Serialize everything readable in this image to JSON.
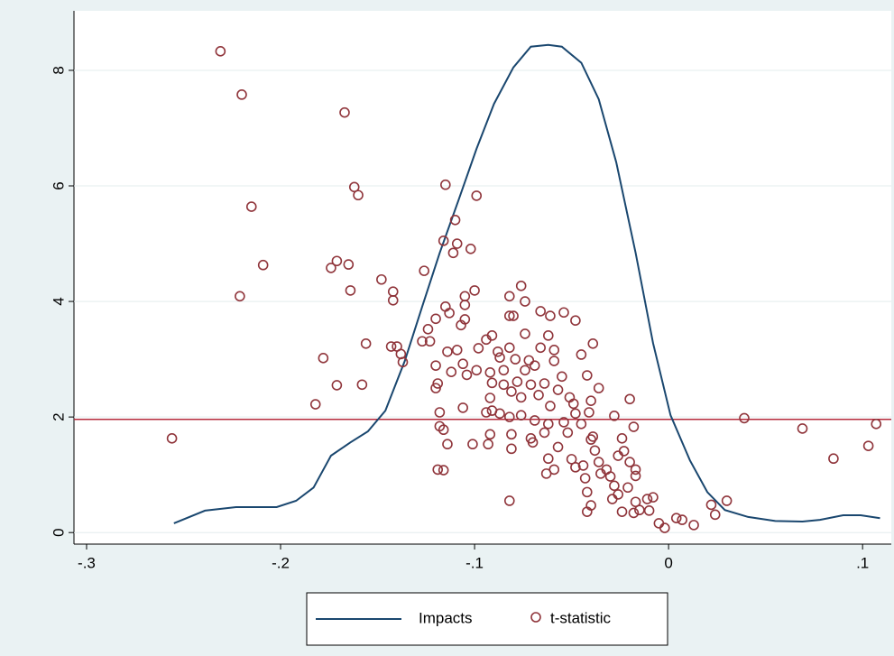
{
  "chart_data": {
    "type": "combo",
    "xlim": [
      -0.3065,
      0.1148
    ],
    "ylim": [
      -0.2,
      9.03
    ],
    "xticks": [
      {
        "value": -0.3,
        "label": "-.3"
      },
      {
        "value": -0.2,
        "label": "-.2"
      },
      {
        "value": -0.1,
        "label": "-.1"
      },
      0,
      {
        "value": 0.1,
        "label": ".1"
      }
    ],
    "yticks": [
      0,
      2,
      4,
      6,
      8
    ],
    "grid": true,
    "hline": {
      "value": 1.96,
      "color": "#b5283a"
    },
    "legend": "bottom",
    "series": [
      {
        "name": "Impacts",
        "type": "line",
        "color": "#1a476f",
        "x": [
          -0.255,
          -0.239,
          -0.223,
          -0.202,
          -0.192,
          -0.183,
          -0.174,
          -0.164,
          -0.155,
          -0.146,
          -0.136,
          -0.127,
          -0.118,
          -0.108,
          -0.099,
          -0.09,
          -0.08,
          -0.071,
          -0.062,
          -0.055,
          -0.045,
          -0.036,
          -0.027,
          -0.017,
          -0.008,
          0.001,
          0.011,
          0.02,
          0.029,
          0.041,
          0.055,
          0.069,
          0.078,
          0.09,
          0.099,
          0.109
        ],
        "values": [
          0.16,
          0.38,
          0.44,
          0.44,
          0.55,
          0.78,
          1.33,
          1.56,
          1.75,
          2.11,
          2.97,
          3.91,
          4.84,
          5.78,
          6.64,
          7.42,
          8.05,
          8.41,
          8.44,
          8.41,
          8.13,
          7.5,
          6.41,
          4.84,
          3.28,
          2.03,
          1.25,
          0.7,
          0.39,
          0.27,
          0.2,
          0.19,
          0.22,
          0.3,
          0.3,
          0.25
        ]
      },
      {
        "name": "t-statistic",
        "type": "scatter",
        "color": "#90353b",
        "x": [
          -0.231,
          -0.22,
          -0.167,
          -0.215,
          -0.162,
          -0.16,
          -0.115,
          -0.099,
          -0.209,
          -0.171,
          -0.174,
          -0.165,
          -0.164,
          -0.221,
          -0.148,
          -0.126,
          -0.116,
          -0.109,
          -0.11,
          -0.111,
          -0.102,
          -0.142,
          -0.142,
          -0.1,
          -0.105,
          -0.105,
          -0.105,
          -0.107,
          -0.115,
          -0.113,
          -0.12,
          -0.124,
          -0.127,
          -0.123,
          -0.156,
          -0.143,
          -0.14,
          -0.138,
          -0.137,
          -0.178,
          -0.158,
          -0.171,
          -0.182,
          -0.256,
          -0.12,
          -0.114,
          -0.109,
          -0.106,
          -0.098,
          -0.094,
          -0.091,
          -0.088,
          -0.082,
          -0.076,
          -0.074,
          -0.082,
          -0.08,
          -0.066,
          -0.061,
          -0.054,
          -0.048,
          -0.074,
          -0.062,
          -0.066,
          -0.059,
          -0.039,
          -0.045,
          -0.087,
          -0.082,
          -0.079,
          -0.072,
          -0.069,
          -0.059,
          -0.055,
          -0.042,
          -0.092,
          -0.085,
          -0.074,
          -0.119,
          -0.112,
          -0.104,
          -0.099,
          -0.091,
          -0.085,
          -0.078,
          -0.071,
          -0.064,
          -0.076,
          -0.067,
          -0.057,
          -0.051,
          -0.092,
          -0.091,
          -0.081,
          -0.12,
          -0.02,
          -0.061,
          -0.049,
          -0.04,
          -0.036,
          -0.041,
          -0.094,
          -0.087,
          -0.106,
          -0.082,
          -0.076,
          -0.069,
          -0.062,
          -0.054,
          -0.048,
          -0.118,
          -0.118,
          -0.116,
          -0.081,
          -0.071,
          -0.064,
          -0.052,
          -0.045,
          -0.039,
          -0.028,
          -0.018,
          0.039,
          0.069,
          0.107,
          0.103,
          0.085,
          -0.092,
          -0.101,
          -0.114,
          -0.093,
          -0.081,
          -0.07,
          -0.057,
          -0.062,
          -0.059,
          -0.063,
          -0.05,
          -0.048,
          -0.044,
          -0.04,
          -0.038,
          -0.036,
          -0.032,
          -0.024,
          -0.023,
          -0.026,
          -0.02,
          -0.017,
          -0.017,
          -0.03,
          -0.035,
          -0.043,
          -0.042,
          -0.04,
          -0.042,
          -0.028,
          -0.026,
          -0.029,
          -0.021,
          -0.017,
          -0.018,
          -0.011,
          -0.01,
          -0.008,
          -0.005,
          -0.002,
          0.004,
          0.007,
          0.013,
          0.022,
          0.024,
          0.03,
          -0.119,
          -0.116,
          -0.082,
          -0.024,
          -0.015
        ],
        "values": [
          8.33,
          7.58,
          7.27,
          5.64,
          5.98,
          5.84,
          6.02,
          5.83,
          4.63,
          4.7,
          4.58,
          4.64,
          4.19,
          4.09,
          4.38,
          4.53,
          5.05,
          5.0,
          5.41,
          4.84,
          4.91,
          4.17,
          4.02,
          4.19,
          4.09,
          3.94,
          3.69,
          3.59,
          3.91,
          3.8,
          3.7,
          3.52,
          3.31,
          3.31,
          3.27,
          3.22,
          3.22,
          3.09,
          2.95,
          3.02,
          2.56,
          2.55,
          2.22,
          1.63,
          2.89,
          3.13,
          3.16,
          2.92,
          3.19,
          3.34,
          3.41,
          3.13,
          4.09,
          4.27,
          4.0,
          3.75,
          3.75,
          3.83,
          3.75,
          3.81,
          3.67,
          3.44,
          3.41,
          3.2,
          3.16,
          3.27,
          3.08,
          3.03,
          3.2,
          3.0,
          2.98,
          2.89,
          2.97,
          2.7,
          2.72,
          2.77,
          2.81,
          2.81,
          2.58,
          2.78,
          2.73,
          2.81,
          2.59,
          2.56,
          2.61,
          2.56,
          2.58,
          2.34,
          2.38,
          2.47,
          2.34,
          2.33,
          2.11,
          2.44,
          2.5,
          2.31,
          2.19,
          2.23,
          2.28,
          2.5,
          2.08,
          2.08,
          2.06,
          2.16,
          2.0,
          2.03,
          1.94,
          1.88,
          1.91,
          2.06,
          2.08,
          1.84,
          1.78,
          1.7,
          1.63,
          1.73,
          1.73,
          1.88,
          1.66,
          2.02,
          1.83,
          1.98,
          1.8,
          1.88,
          1.5,
          1.28,
          1.7,
          1.53,
          1.53,
          1.53,
          1.45,
          1.56,
          1.48,
          1.28,
          1.09,
          1.02,
          1.27,
          1.13,
          1.16,
          1.61,
          1.42,
          1.22,
          1.09,
          1.63,
          1.41,
          1.33,
          1.22,
          1.09,
          0.98,
          0.97,
          1.02,
          0.94,
          0.7,
          0.47,
          0.36,
          0.81,
          0.66,
          0.58,
          0.78,
          0.53,
          0.34,
          0.58,
          0.38,
          0.61,
          0.16,
          0.08,
          0.25,
          0.22,
          0.13,
          0.48,
          0.31,
          0.55,
          1.09,
          1.08,
          0.55,
          0.36,
          0.39
        ]
      }
    ]
  }
}
